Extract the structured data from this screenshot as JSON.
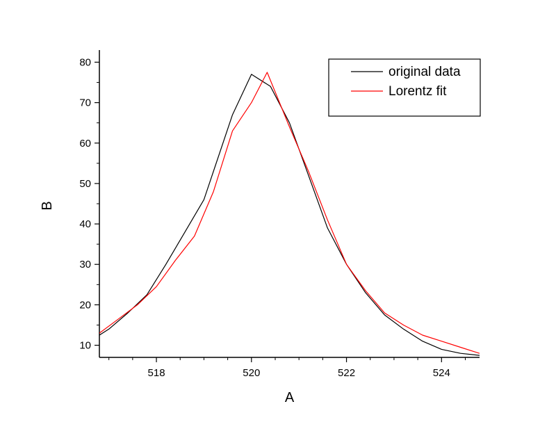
{
  "chart_data": {
    "type": "line",
    "title": "",
    "xlabel": "A",
    "ylabel": "B",
    "xlim": [
      516.8,
      524.8
    ],
    "ylim": [
      7,
      83
    ],
    "x_ticks": [
      518,
      520,
      522,
      524
    ],
    "x_tick_labels": [
      "518",
      "520",
      "522",
      "524"
    ],
    "y_ticks": [
      10,
      20,
      30,
      40,
      50,
      60,
      70,
      80
    ],
    "y_tick_labels": [
      "10",
      "20",
      "30",
      "40",
      "50",
      "60",
      "70",
      "80"
    ],
    "grid": false,
    "legend_position": "top-right",
    "series": [
      {
        "name": "original data",
        "color": "#000000",
        "x": [
          516.8,
          517.0,
          517.4,
          517.8,
          518.2,
          518.6,
          519.0,
          519.2,
          519.6,
          520.0,
          520.4,
          520.8,
          521.2,
          521.6,
          522.0,
          522.4,
          522.8,
          523.2,
          523.6,
          524.0,
          524.4,
          524.8
        ],
        "y": [
          12.5,
          14.0,
          18.0,
          22.5,
          30.0,
          38.0,
          46.0,
          53.0,
          67.0,
          77.0,
          74.0,
          65.0,
          52.0,
          39.0,
          30.0,
          23.0,
          17.5,
          14.0,
          11.0,
          9.0,
          8.0,
          7.5
        ]
      },
      {
        "name": "Lorentz fit",
        "color": "#ff0000",
        "x": [
          516.8,
          517.2,
          517.6,
          518.0,
          518.4,
          518.8,
          519.2,
          519.6,
          520.0,
          520.33,
          520.8,
          521.2,
          521.6,
          522.0,
          522.4,
          522.8,
          523.2,
          523.6,
          524.0,
          524.4,
          524.8
        ],
        "y": [
          13.0,
          16.5,
          20.0,
          24.5,
          31.0,
          37.0,
          48.0,
          63.0,
          70.0,
          77.5,
          64.0,
          53.0,
          41.0,
          30.0,
          23.5,
          18.0,
          15.0,
          12.5,
          11.0,
          9.5,
          8.0
        ]
      }
    ]
  }
}
